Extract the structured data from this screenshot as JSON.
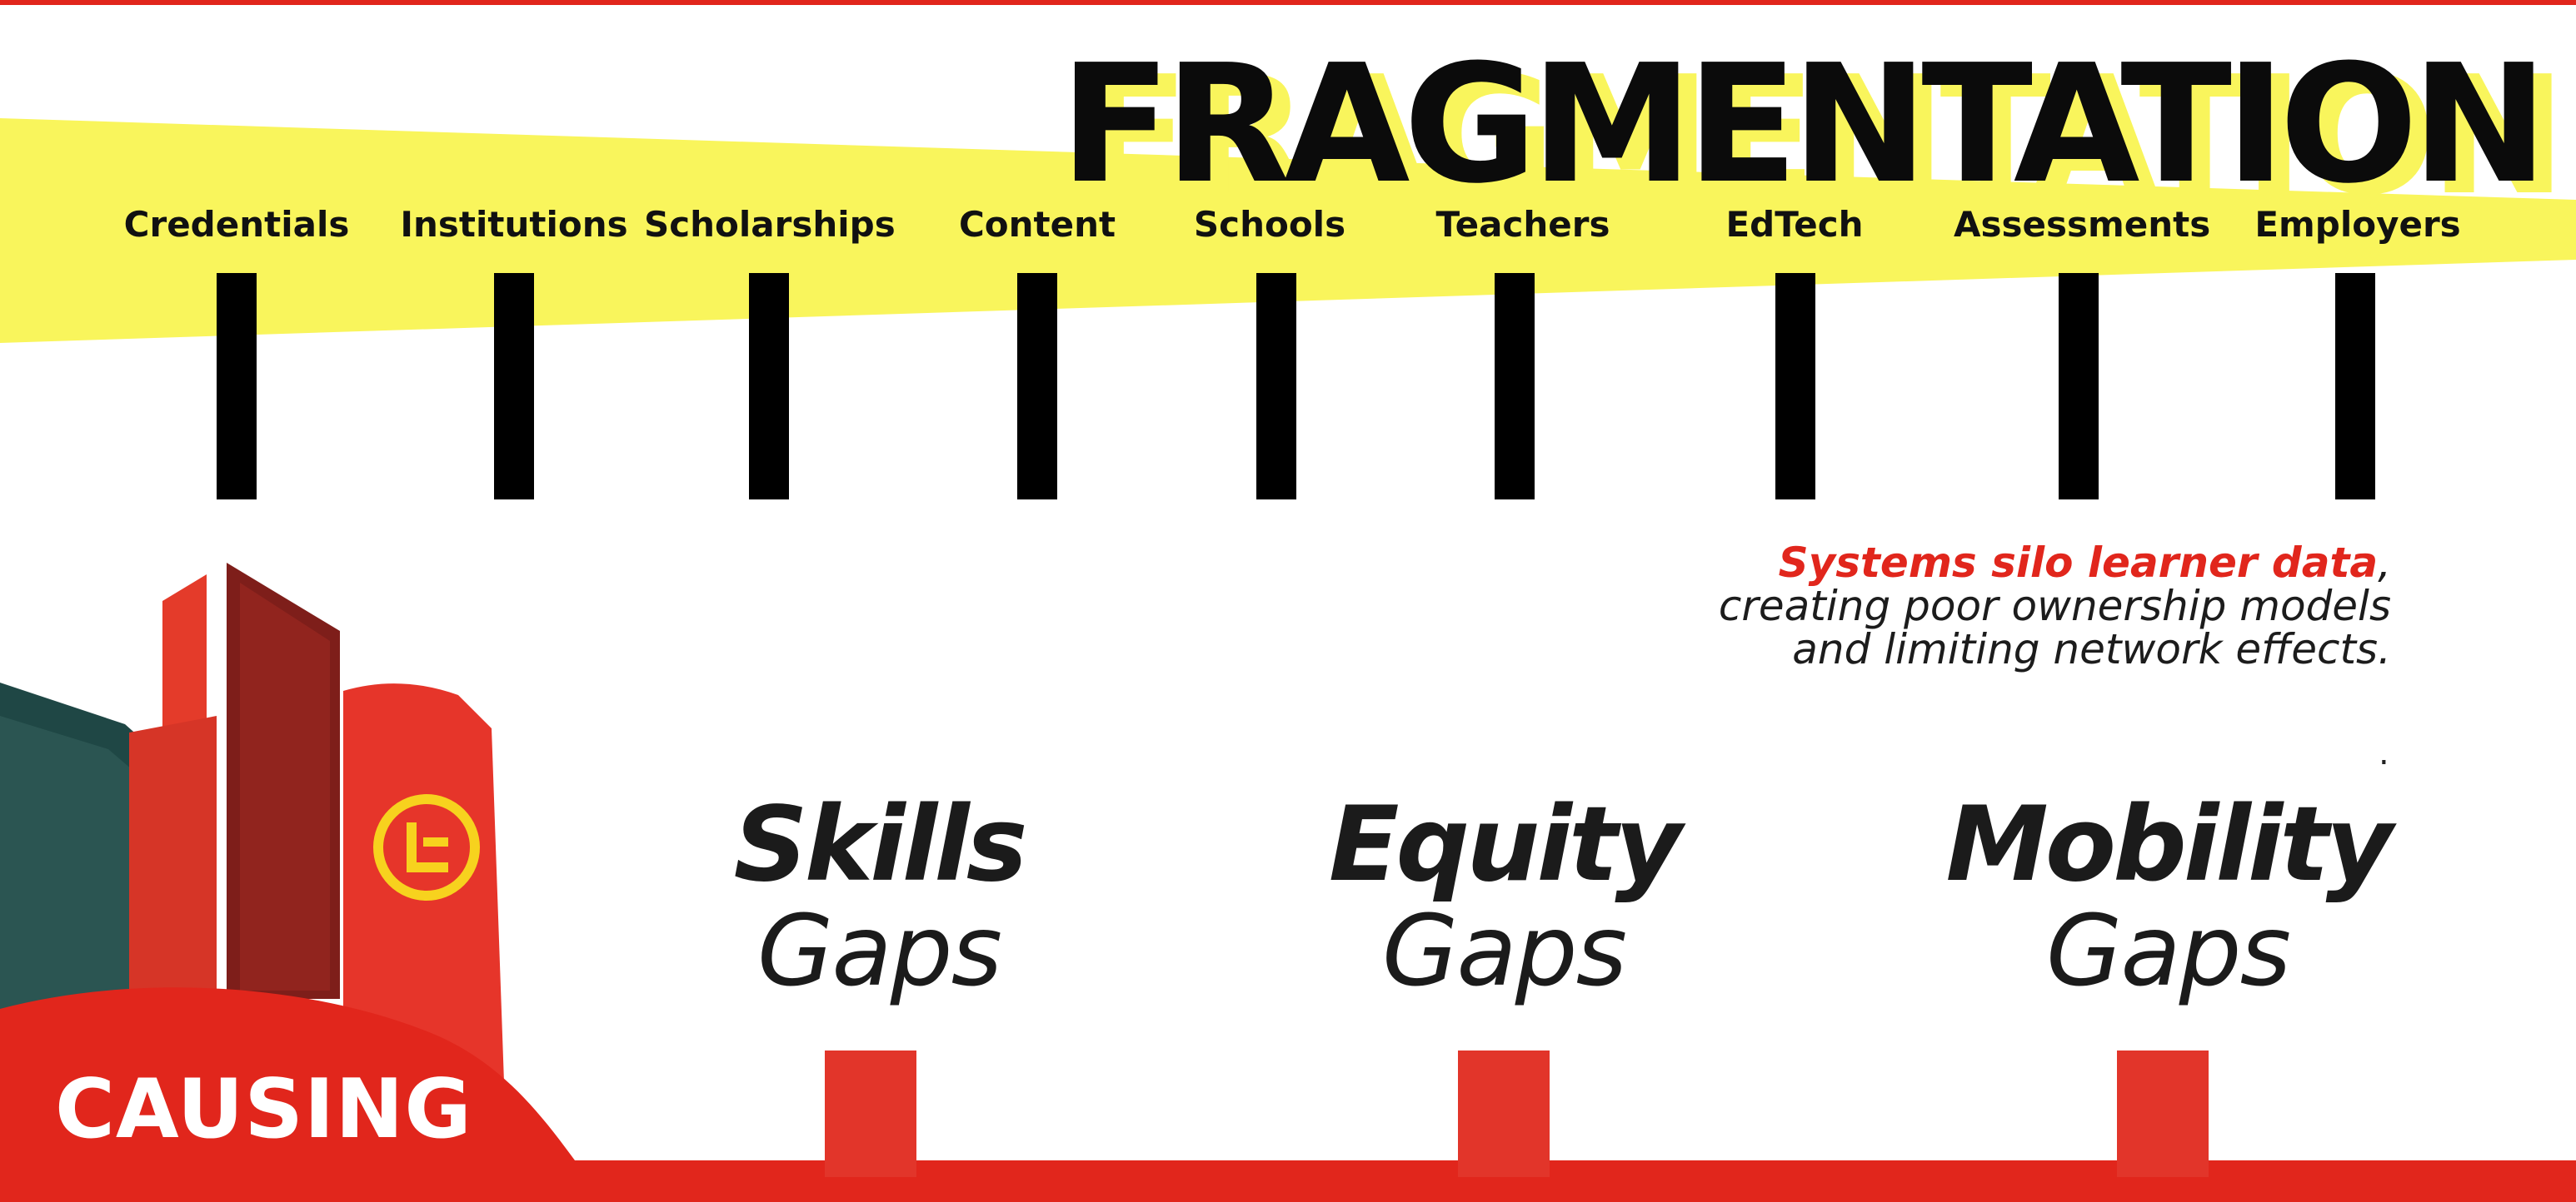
{
  "title": "FRAGMENTATION",
  "categories": [
    {
      "label": "Credentials"
    },
    {
      "label": "Institutions"
    },
    {
      "label": "Scholarships"
    },
    {
      "label": "Content"
    },
    {
      "label": "Schools"
    },
    {
      "label": "Teachers"
    },
    {
      "label": "EdTech"
    },
    {
      "label": "Assessments"
    },
    {
      "label": "Employers"
    }
  ],
  "statement": {
    "highlight": "Systems silo learner data",
    "comma": ",",
    "line2": "creating poor ownership models",
    "line3": "and limiting network effects.",
    "dot": "."
  },
  "gaps": [
    {
      "title": "Skills",
      "subtitle": "Gaps"
    },
    {
      "title": "Equity",
      "subtitle": "Gaps"
    },
    {
      "title": "Mobility",
      "subtitle": "Gaps"
    }
  ],
  "causing": "CAUSING",
  "colors": {
    "accent_red": "#e1261c",
    "highlight_yellow": "#f9f55c",
    "ink": "#0b0b0b"
  },
  "icons": [
    "city-buildings-illustration",
    "logo-l-icon"
  ]
}
